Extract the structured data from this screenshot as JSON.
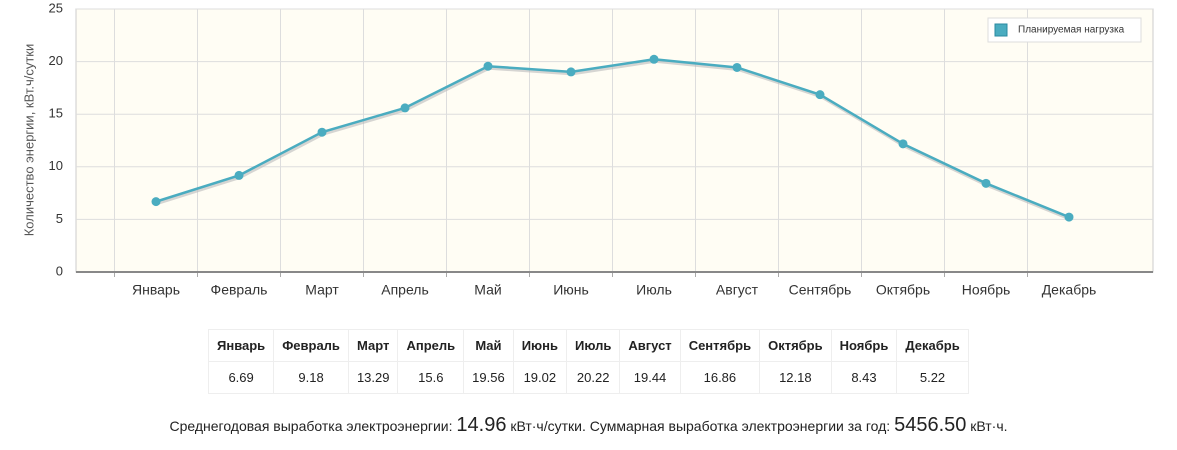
{
  "chart_data": {
    "type": "line",
    "y_label": "Количество энергии, кВт.ч/сутки",
    "categories": [
      "Январь",
      "Февраль",
      "Март",
      "Апрель",
      "Май",
      "Июнь",
      "Июль",
      "Август",
      "Сентябрь",
      "Октябрь",
      "Ноябрь",
      "Декабрь"
    ],
    "series": [
      {
        "name": "Планируемая нагрузка",
        "color": "#4aacc0",
        "values": [
          6.69,
          9.18,
          13.29,
          15.6,
          19.56,
          19.02,
          20.22,
          19.44,
          16.86,
          12.18,
          8.43,
          5.22
        ]
      }
    ],
    "ylim": [
      0,
      25
    ],
    "yticks": [
      0,
      5,
      10,
      15,
      20,
      25
    ],
    "grid": true,
    "legend": "top-right"
  },
  "summary": {
    "parts": [
      "Среднегодовая выработка электроэнергии: ",
      "14.96",
      " кВт·ч/сутки. Суммарная выработка электроэнергии за год: ",
      "5456.50",
      " кВт·ч."
    ]
  }
}
